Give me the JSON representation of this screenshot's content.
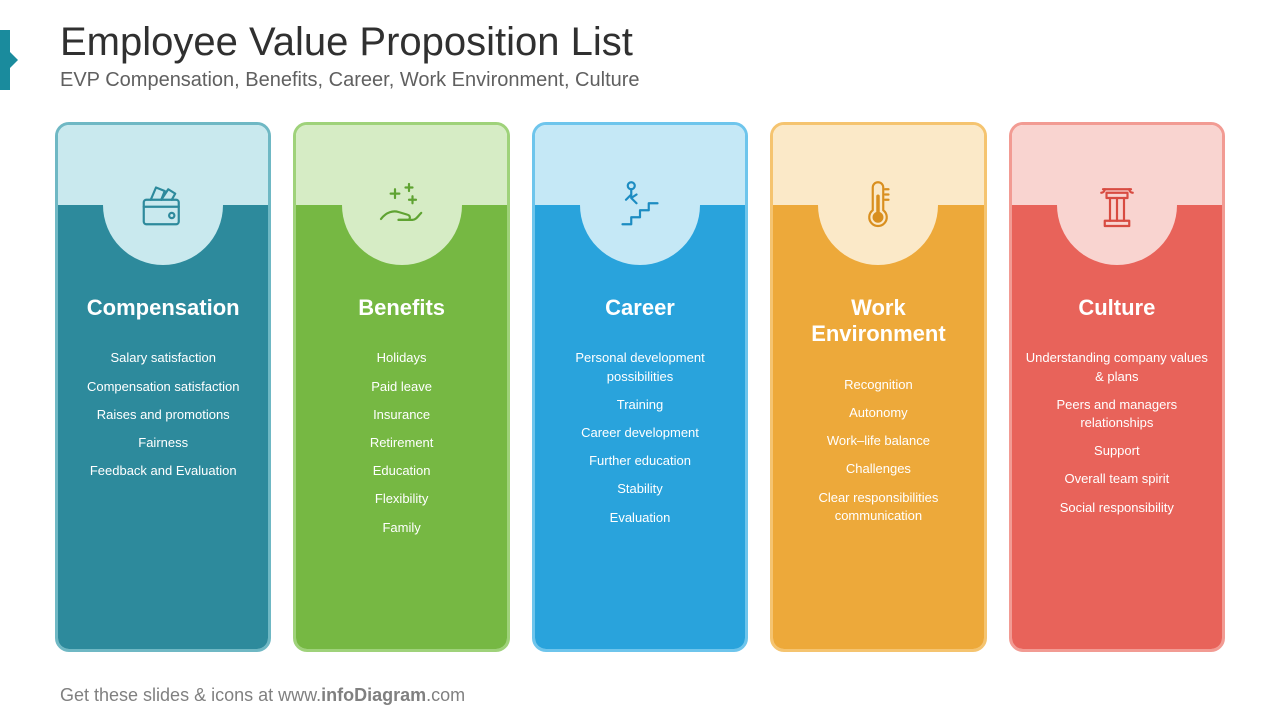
{
  "title": "Employee Value Proposition List",
  "subtitle": "EVP Compensation, Benefits, Career, Work Environment, Culture",
  "footer_prefix": "Get these slides & icons at www.",
  "footer_bold": "infoDiagram",
  "footer_suffix": ".com",
  "columns": [
    {
      "title": "Compensation",
      "icon": "wallet",
      "border_color": "#6fb8c4",
      "main_color": "#2d8a9c",
      "light_color": "#c9e9ee",
      "icon_stroke": "#2d8a9c",
      "items": [
        "Salary satisfaction",
        "Compensation satisfaction",
        "Raises and promotions",
        "Fairness",
        "Feedback and Evaluation"
      ]
    },
    {
      "title": "Benefits",
      "icon": "hand-plus",
      "border_color": "#9fd27a",
      "main_color": "#76b843",
      "light_color": "#d6ecc5",
      "icon_stroke": "#5fa332",
      "items": [
        "Holidays",
        "Paid leave",
        "Insurance",
        "Retirement",
        "Education",
        "Flexibility",
        "Family"
      ]
    },
    {
      "title": "Career",
      "icon": "stairs",
      "border_color": "#6ec5ec",
      "main_color": "#29a3dc",
      "light_color": "#c5e8f6",
      "icon_stroke": "#1c8cc2",
      "items": [
        "Personal development possibilities",
        "Training",
        "Career development",
        "Further education",
        "Stability",
        "Evaluation"
      ]
    },
    {
      "title": "Work Environment",
      "icon": "thermometer",
      "border_color": "#f5c470",
      "main_color": "#eda93a",
      "light_color": "#fbe9c8",
      "icon_stroke": "#d98f1f",
      "items": [
        "Recognition",
        "Autonomy",
        "Work–life balance",
        "Challenges",
        "Clear responsibilities communication"
      ]
    },
    {
      "title": "Culture",
      "icon": "pillar",
      "border_color": "#f29b93",
      "main_color": "#e8635a",
      "light_color": "#f9d4d0",
      "icon_stroke": "#d84b41",
      "items": [
        "Understanding company values & plans",
        "Peers and managers relationships",
        "Support",
        "Overall team spirit",
        "Social responsibility"
      ]
    }
  ]
}
